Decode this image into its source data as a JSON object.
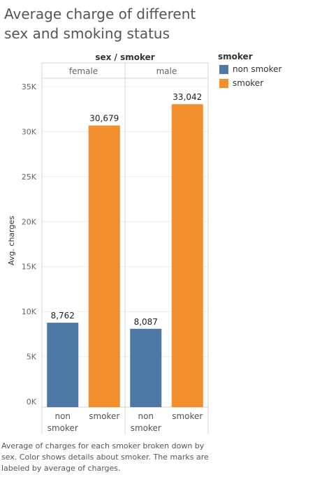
{
  "title": "Average charge of different sex and smoking status",
  "caption": "Average of charges for each smoker broken down by sex.  Color shows details about smoker.  The marks are labeled by average of charges.",
  "legend": {
    "title": "smoker",
    "items": [
      {
        "label": "non smoker",
        "color": "#4e79a7"
      },
      {
        "label": "smoker",
        "color": "#f28e2b"
      }
    ]
  },
  "chart_data": {
    "type": "bar",
    "title": "Average charge of different sex and smoking status",
    "column_header": "sex / smoker",
    "ylabel": "Avg. charges",
    "ylim": [
      0,
      35000
    ],
    "y_ticks": [
      {
        "value": 0,
        "label": "0K"
      },
      {
        "value": 5000,
        "label": "5K"
      },
      {
        "value": 10000,
        "label": "10K"
      },
      {
        "value": 15000,
        "label": "15K"
      },
      {
        "value": 20000,
        "label": "20K"
      },
      {
        "value": 25000,
        "label": "25K"
      },
      {
        "value": 30000,
        "label": "30K"
      },
      {
        "value": 35000,
        "label": "35K"
      }
    ],
    "grid": true,
    "legend_position": "top-right",
    "panels": [
      {
        "name": "female",
        "bars": [
          {
            "category": "non smoker",
            "value": 8762,
            "label": "8,762",
            "color": "#4e79a7"
          },
          {
            "category": "smoker",
            "value": 30679,
            "label": "30,679",
            "color": "#f28e2b"
          }
        ]
      },
      {
        "name": "male",
        "bars": [
          {
            "category": "non smoker",
            "value": 8087,
            "label": "8,087",
            "color": "#4e79a7"
          },
          {
            "category": "smoker",
            "value": 33042,
            "label": "33,042",
            "color": "#f28e2b"
          }
        ]
      }
    ]
  }
}
